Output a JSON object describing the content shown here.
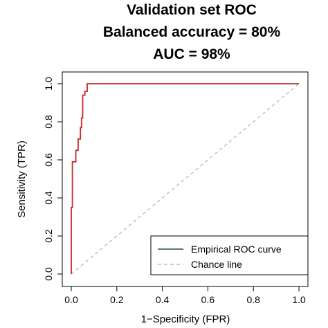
{
  "chart_data": {
    "type": "line",
    "title_lines": [
      "Validation set ROC",
      "Balanced accuracy = 80%",
      "AUC = 98%"
    ],
    "xlabel": "1−Specificity (FPR)",
    "ylabel": "Sensitivity (TPR)",
    "xlim": [
      0,
      1
    ],
    "ylim": [
      0,
      1
    ],
    "x_ticks": [
      "0.0",
      "0.2",
      "0.4",
      "0.6",
      "0.8",
      "1.0"
    ],
    "y_ticks": [
      "0.0",
      "0.2",
      "0.4",
      "0.6",
      "0.8",
      "1.0"
    ],
    "grid": false,
    "legend_position": "bottom-right",
    "series": [
      {
        "name": "Empirical ROC curve",
        "color": "#c62828",
        "legend_color": "#1f4e3d",
        "style": "solid",
        "x": [
          0.0,
          0.0,
          0.005,
          0.005,
          0.02,
          0.02,
          0.03,
          0.03,
          0.04,
          0.04,
          0.045,
          0.045,
          0.05,
          0.05,
          0.06,
          0.06,
          0.07,
          0.07,
          1.0
        ],
        "y": [
          0.0,
          0.35,
          0.35,
          0.59,
          0.59,
          0.65,
          0.65,
          0.71,
          0.71,
          0.77,
          0.77,
          0.82,
          0.82,
          0.94,
          0.94,
          0.96,
          0.96,
          1.0,
          1.0
        ]
      },
      {
        "name": "Chance line",
        "color": "#bbbbbb",
        "style": "dashed",
        "x": [
          0,
          1
        ],
        "y": [
          0,
          1
        ]
      }
    ]
  }
}
